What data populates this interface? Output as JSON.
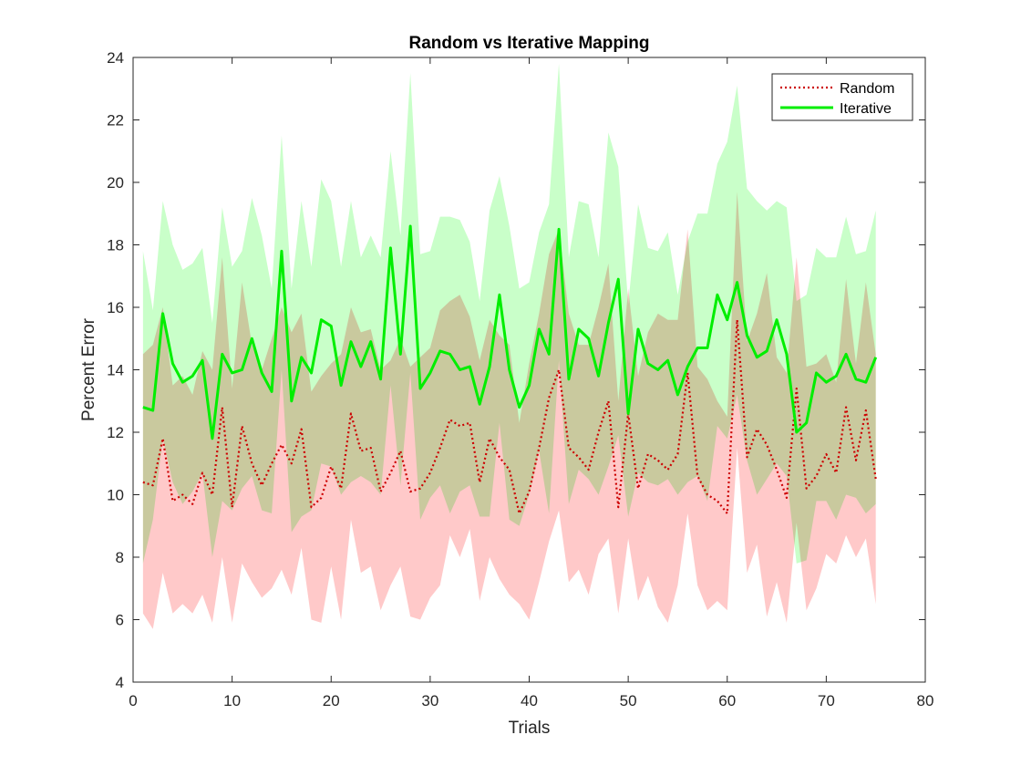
{
  "chart_data": {
    "type": "line",
    "title": "Random vs Iterative Mapping",
    "xlabel": "Trials",
    "ylabel": "Percent Error",
    "xlim": [
      0,
      80
    ],
    "ylim": [
      4,
      24
    ],
    "xticks": [
      "0",
      "10",
      "20",
      "30",
      "40",
      "50",
      "60",
      "70",
      "80"
    ],
    "yticks": [
      "4",
      "6",
      "8",
      "10",
      "12",
      "14",
      "16",
      "18",
      "20",
      "22",
      "24"
    ],
    "grid": false,
    "legend_position": "top-right",
    "x": [
      1,
      2,
      3,
      4,
      5,
      6,
      7,
      8,
      9,
      10,
      11,
      12,
      13,
      14,
      15,
      16,
      17,
      18,
      19,
      20,
      21,
      22,
      23,
      24,
      25,
      26,
      27,
      28,
      29,
      30,
      31,
      32,
      33,
      34,
      35,
      36,
      37,
      38,
      39,
      40,
      41,
      42,
      43,
      44,
      45,
      46,
      47,
      48,
      49,
      50,
      51,
      52,
      53,
      54,
      55,
      56,
      57,
      58,
      59,
      60,
      61,
      62,
      63,
      64,
      65,
      66,
      67,
      68,
      69,
      70,
      71,
      72,
      73,
      74,
      75
    ],
    "series": [
      {
        "name": "Random",
        "color": "#cc0000",
        "band_color": "#ffbfbf",
        "style": "dotted",
        "values": [
          10.4,
          10.3,
          11.8,
          9.8,
          10.0,
          9.7,
          10.7,
          10.0,
          12.8,
          9.6,
          12.2,
          11.0,
          10.3,
          11.0,
          11.6,
          11.0,
          12.1,
          9.6,
          9.9,
          10.9,
          10.2,
          12.6,
          11.4,
          11.5,
          10.1,
          10.7,
          11.4,
          10.1,
          10.2,
          10.7,
          11.5,
          12.4,
          12.2,
          12.3,
          10.4,
          11.8,
          11.2,
          10.8,
          9.4,
          10.1,
          11.5,
          13.1,
          14.0,
          11.5,
          11.2,
          10.8,
          12.0,
          13.0,
          9.6,
          12.6,
          10.2,
          11.3,
          11.1,
          10.8,
          11.3,
          13.9,
          10.6,
          10.0,
          9.8,
          9.4,
          15.6,
          11.2,
          12.1,
          11.6,
          10.8,
          9.9,
          13.4,
          10.2,
          10.6,
          11.3,
          10.7,
          12.8,
          11.1,
          12.7,
          10.5
        ],
        "lower": [
          6.2,
          5.7,
          7.5,
          6.2,
          6.5,
          6.2,
          6.8,
          5.9,
          8.0,
          5.9,
          7.8,
          7.2,
          6.7,
          7.0,
          7.6,
          6.8,
          8.3,
          6.0,
          5.9,
          7.7,
          6.0,
          9.2,
          7.5,
          7.7,
          6.3,
          7.1,
          7.7,
          6.1,
          6.0,
          6.7,
          7.1,
          8.7,
          8.0,
          8.9,
          6.6,
          8.0,
          7.3,
          6.8,
          6.5,
          6.0,
          7.2,
          8.5,
          9.5,
          7.2,
          7.6,
          6.8,
          8.1,
          8.6,
          6.2,
          8.6,
          6.6,
          7.4,
          6.4,
          5.9,
          7.1,
          9.4,
          7.1,
          6.3,
          6.6,
          6.3,
          11.5,
          7.5,
          8.4,
          6.1,
          7.2,
          5.9,
          9.1,
          6.3,
          7.0,
          8.1,
          7.8,
          8.7,
          8.0,
          8.6,
          6.5
        ],
        "upper": [
          14.5,
          14.8,
          16.0,
          13.5,
          13.8,
          13.2,
          14.6,
          14.0,
          17.6,
          13.4,
          16.8,
          14.8,
          14.0,
          15.0,
          16.0,
          15.2,
          15.8,
          13.3,
          13.8,
          14.2,
          14.5,
          16.0,
          15.2,
          15.3,
          14.0,
          14.3,
          15.0,
          14.1,
          14.4,
          14.7,
          15.9,
          16.2,
          16.4,
          15.7,
          14.3,
          15.6,
          15.1,
          14.8,
          12.3,
          14.2,
          15.8,
          17.7,
          18.5,
          15.8,
          14.8,
          14.8,
          16.0,
          17.4,
          13.0,
          16.6,
          13.8,
          15.2,
          15.8,
          15.6,
          15.6,
          18.5,
          14.1,
          13.7,
          13.0,
          12.5,
          19.7,
          14.9,
          15.8,
          17.1,
          14.4,
          13.9,
          17.6,
          14.1,
          14.2,
          14.5,
          13.6,
          16.9,
          14.2,
          16.8,
          14.5
        ]
      },
      {
        "name": "Iterative",
        "color": "#00ee00",
        "band_color": "#bfffbf",
        "style": "solid",
        "values": [
          12.8,
          12.7,
          15.8,
          14.2,
          13.6,
          13.8,
          14.3,
          11.8,
          14.5,
          13.9,
          14.0,
          15.0,
          13.9,
          13.3,
          17.8,
          13.0,
          14.4,
          13.9,
          15.6,
          15.4,
          13.5,
          14.9,
          14.1,
          14.9,
          13.7,
          17.9,
          14.5,
          18.6,
          13.4,
          13.9,
          14.6,
          14.5,
          14.0,
          14.1,
          12.9,
          14.1,
          16.4,
          14.0,
          12.8,
          13.5,
          15.3,
          14.5,
          18.5,
          13.7,
          15.3,
          15.0,
          13.8,
          15.5,
          16.9,
          12.6,
          15.3,
          14.2,
          14.0,
          14.3,
          13.2,
          14.1,
          14.7,
          14.7,
          16.4,
          15.6,
          16.8,
          15.1,
          14.4,
          14.6,
          15.6,
          14.5,
          12.0,
          12.3,
          13.9,
          13.6,
          13.8,
          14.5,
          13.7,
          13.6,
          14.4
        ],
        "lower": [
          7.8,
          9.2,
          11.8,
          10.4,
          9.7,
          10.1,
          10.7,
          8.0,
          9.8,
          9.5,
          10.2,
          10.6,
          9.5,
          9.4,
          14.0,
          8.8,
          9.3,
          9.5,
          11.0,
          10.9,
          10.0,
          10.4,
          10.6,
          10.4,
          10.0,
          13.5,
          10.3,
          13.9,
          9.2,
          9.9,
          10.3,
          9.4,
          10.1,
          10.3,
          9.3,
          9.3,
          12.3,
          9.2,
          9.0,
          10.0,
          11.4,
          9.4,
          14.3,
          9.7,
          10.8,
          10.5,
          10.0,
          10.9,
          11.9,
          9.3,
          10.7,
          10.4,
          10.3,
          10.5,
          10.0,
          10.4,
          10.6,
          9.8,
          12.2,
          11.8,
          13.2,
          11.1,
          10.0,
          10.5,
          11.0,
          10.6,
          7.8,
          7.9,
          9.8,
          9.8,
          9.2,
          10.0,
          9.9,
          9.4,
          9.7
        ],
        "upper": [
          17.8,
          15.9,
          19.4,
          18.0,
          17.2,
          17.4,
          17.9,
          15.5,
          19.2,
          17.3,
          17.8,
          19.5,
          18.3,
          16.6,
          21.5,
          16.6,
          19.4,
          17.3,
          20.1,
          19.4,
          17.3,
          19.4,
          17.6,
          18.3,
          17.6,
          21.0,
          18.3,
          23.5,
          17.7,
          17.8,
          18.9,
          18.9,
          18.8,
          18.1,
          16.2,
          19.1,
          20.2,
          18.6,
          16.6,
          16.8,
          18.4,
          19.3,
          23.8,
          17.6,
          19.4,
          19.3,
          17.6,
          21.6,
          20.5,
          16.1,
          19.3,
          17.9,
          17.8,
          18.4,
          16.4,
          18.1,
          19.0,
          19.0,
          20.6,
          21.3,
          23.1,
          19.8,
          19.4,
          19.1,
          19.4,
          19.2,
          16.2,
          16.4,
          17.9,
          17.6,
          17.6,
          18.9,
          17.7,
          17.8,
          19.1
        ]
      }
    ]
  }
}
